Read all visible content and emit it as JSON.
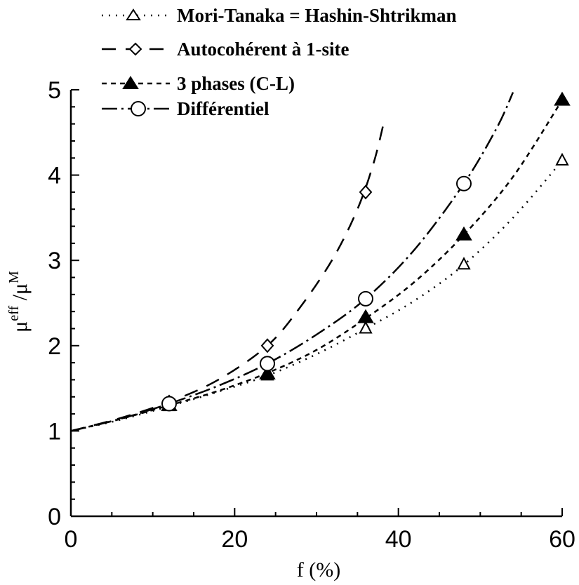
{
  "chart_data": {
    "type": "line",
    "xlabel": "f (%)",
    "ylabel": "μeff /μM",
    "ylabel_main": "μ",
    "ylabel_sup1": "eff",
    "ylabel_mid": " /μ",
    "ylabel_sup2": "M",
    "xlim": [
      0,
      60
    ],
    "ylim": [
      0,
      5
    ],
    "x_ticks": [
      0,
      20,
      40,
      60
    ],
    "y_ticks": [
      0,
      1,
      2,
      3,
      4,
      5
    ],
    "x_tick_labels": [
      "0",
      "20",
      "40",
      "60"
    ],
    "y_tick_labels": [
      "0",
      "1",
      "2",
      "3",
      "4",
      "5"
    ],
    "grid": false,
    "legend_position": "top-left",
    "series": [
      {
        "name": "Mori-Tanaka = Hashin-Shtrikman",
        "marker": "open-triangle",
        "line_style": "dotted",
        "points": [
          [
            12,
            1.29
          ],
          [
            24,
            1.65
          ],
          [
            36,
            2.2
          ],
          [
            48,
            2.95
          ],
          [
            60,
            4.17
          ]
        ],
        "curve": [
          [
            0,
            1.0
          ],
          [
            6,
            1.13
          ],
          [
            12,
            1.29
          ],
          [
            18,
            1.46
          ],
          [
            24,
            1.65
          ],
          [
            30,
            1.9
          ],
          [
            36,
            2.2
          ],
          [
            42,
            2.53
          ],
          [
            48,
            2.95
          ],
          [
            54,
            3.5
          ],
          [
            60,
            4.17
          ]
        ]
      },
      {
        "name": "Autocohérent à 1-site",
        "marker": "open-diamond",
        "line_style": "long-dash",
        "points": [
          [
            12,
            1.34
          ],
          [
            24,
            2.0
          ],
          [
            36,
            3.8
          ]
        ],
        "curve": [
          [
            0,
            1.0
          ],
          [
            6,
            1.15
          ],
          [
            12,
            1.34
          ],
          [
            18,
            1.6
          ],
          [
            24,
            2.0
          ],
          [
            28,
            2.45
          ],
          [
            32,
            3.02
          ],
          [
            35,
            3.6
          ],
          [
            37,
            4.15
          ],
          [
            38.3,
            4.65
          ]
        ]
      },
      {
        "name": "3 phases (C-L)",
        "marker": "filled-triangle",
        "line_style": "short-dash",
        "points": [
          [
            12,
            1.3
          ],
          [
            24,
            1.67
          ],
          [
            36,
            2.33
          ],
          [
            48,
            3.3
          ],
          [
            60,
            4.88
          ]
        ],
        "curve": [
          [
            0,
            1.0
          ],
          [
            6,
            1.14
          ],
          [
            12,
            1.3
          ],
          [
            18,
            1.47
          ],
          [
            24,
            1.68
          ],
          [
            30,
            1.95
          ],
          [
            36,
            2.32
          ],
          [
            42,
            2.75
          ],
          [
            48,
            3.3
          ],
          [
            54,
            3.98
          ],
          [
            60,
            4.88
          ]
        ]
      },
      {
        "name": "Différentiel",
        "marker": "open-circle",
        "line_style": "dash-dot",
        "points": [
          [
            12,
            1.32
          ],
          [
            24,
            1.79
          ],
          [
            36,
            2.55
          ],
          [
            48,
            3.9
          ]
        ],
        "curve": [
          [
            0,
            1.0
          ],
          [
            6,
            1.14
          ],
          [
            12,
            1.32
          ],
          [
            18,
            1.53
          ],
          [
            24,
            1.79
          ],
          [
            30,
            2.13
          ],
          [
            36,
            2.55
          ],
          [
            42,
            3.13
          ],
          [
            48,
            3.9
          ],
          [
            52,
            4.55
          ],
          [
            54,
            4.97
          ]
        ]
      }
    ]
  }
}
